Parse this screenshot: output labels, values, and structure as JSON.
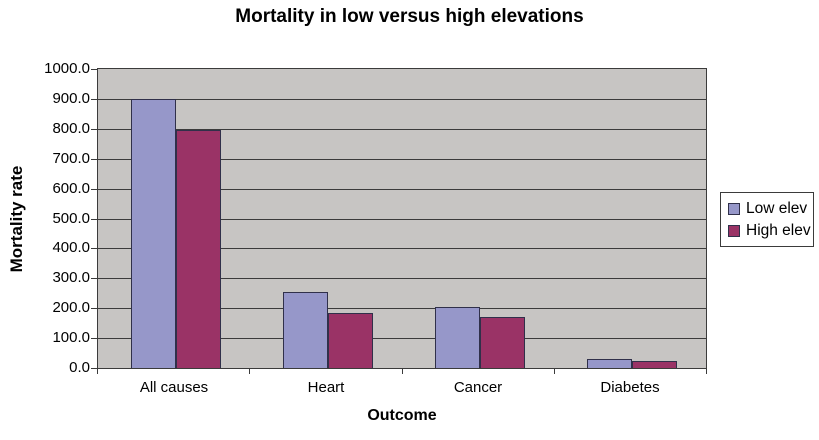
{
  "chart_data": {
    "type": "bar",
    "title": "Mortality in low versus high elevations",
    "xlabel": "Outcome",
    "ylabel": "Mortality rate",
    "categories": [
      "All causes",
      "Heart",
      "Cancer",
      "Diabetes"
    ],
    "series": [
      {
        "name": "Low elev",
        "color": "#9697c9",
        "border_color": "#30304a",
        "values": [
          900,
          255,
          205,
          30
        ]
      },
      {
        "name": "High elev",
        "color": "#9a3366",
        "border_color": "#30304a",
        "values": [
          795,
          185,
          170,
          25
        ]
      }
    ],
    "ylim": [
      0,
      1000
    ],
    "ytick_labels": [
      "0.0",
      "100.0",
      "200.0",
      "300.0",
      "400.0",
      "500.0",
      "600.0",
      "700.0",
      "800.0",
      "900.0",
      "1000.0"
    ],
    "grid": true,
    "legend_position": "right",
    "plot_bg": "#c7c5c3",
    "axis_color": "#3b3b3b",
    "gridline_color": "#3b3b3b"
  },
  "legend": {
    "items": [
      {
        "label": "Low elev",
        "color": "#9697c9"
      },
      {
        "label": "High elev",
        "color": "#9a3366"
      }
    ]
  }
}
